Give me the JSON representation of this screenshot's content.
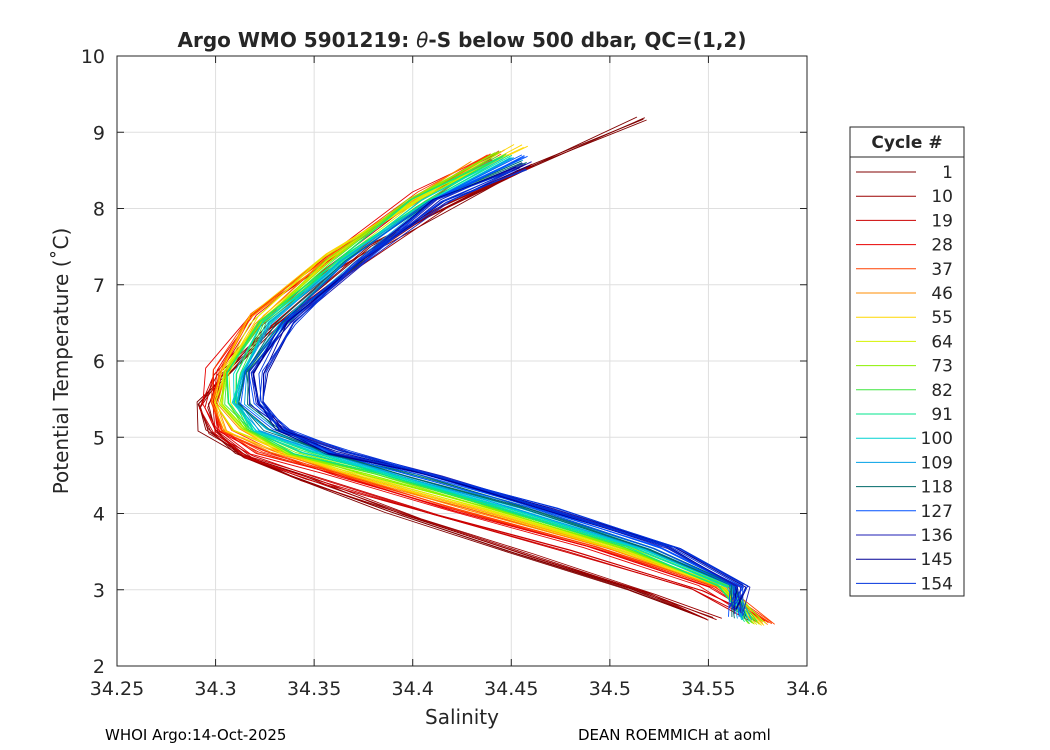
{
  "chart_data": {
    "type": "line",
    "title_prefix": "Argo WMO 5901219: ",
    "title_symbol": "θ",
    "title_suffix": "-S below 500 dbar,  QC=(1,2)",
    "xlabel": "Salinity",
    "ylabel": "Potential Temperature (˚C)",
    "xlim": [
      34.25,
      34.6
    ],
    "ylim": [
      2,
      10
    ],
    "xticks": [
      "34.25",
      "34.3",
      "34.35",
      "34.4",
      "34.45",
      "34.5",
      "34.55",
      "34.6"
    ],
    "yticks": [
      "2",
      "3",
      "4",
      "5",
      "6",
      "7",
      "8",
      "9",
      "10"
    ],
    "grid": true,
    "legend_title": "Cycle #",
    "legend_position": "right-outside",
    "series": [
      {
        "name": "1",
        "color": "#800000",
        "temp": [
          9.18,
          8.5,
          7.5,
          6.5,
          5.8,
          5.45,
          5.1,
          4.8,
          4.5,
          4.0,
          3.5,
          3.0,
          2.65
        ],
        "sal": [
          34.516,
          34.455,
          34.38,
          34.33,
          34.305,
          34.293,
          34.295,
          34.31,
          34.34,
          34.39,
          34.45,
          34.51,
          34.548
        ]
      },
      {
        "name": "10",
        "color": "#9b0000",
        "temp": [
          8.57,
          8.0,
          7.2,
          6.4,
          5.8,
          5.4,
          5.05,
          4.75,
          4.45,
          3.95,
          3.45,
          2.95,
          2.62
        ],
        "sal": [
          34.46,
          34.415,
          34.365,
          34.325,
          34.303,
          34.295,
          34.298,
          34.315,
          34.345,
          34.4,
          34.46,
          34.52,
          34.552
        ]
      },
      {
        "name": "19",
        "color": "#cc0000",
        "temp": [
          8.65,
          8.0,
          7.2,
          6.4,
          5.8,
          5.4,
          5.05,
          4.75,
          4.45,
          4.0,
          3.5,
          3.0,
          2.6
        ],
        "sal": [
          34.44,
          34.4,
          34.355,
          34.32,
          34.302,
          34.296,
          34.3,
          34.318,
          34.35,
          34.41,
          34.48,
          34.545,
          34.575
        ]
      },
      {
        "name": "28",
        "color": "#e80000",
        "temp": [
          8.75,
          8.2,
          7.4,
          6.6,
          5.9,
          5.45,
          5.1,
          4.8,
          4.5,
          4.05,
          3.55,
          3.05,
          2.57
        ],
        "sal": [
          34.445,
          34.405,
          34.36,
          34.32,
          34.3,
          34.297,
          34.302,
          34.322,
          34.36,
          34.42,
          34.49,
          34.55,
          34.578
        ]
      },
      {
        "name": "37",
        "color": "#ff4000",
        "temp": [
          8.7,
          8.2,
          7.4,
          6.6,
          5.9,
          5.45,
          5.1,
          4.8,
          4.5,
          4.05,
          3.55,
          3.05,
          2.55
        ],
        "sal": [
          34.44,
          34.405,
          34.358,
          34.32,
          34.302,
          34.298,
          34.305,
          34.325,
          34.365,
          34.425,
          34.495,
          34.555,
          34.582
        ]
      },
      {
        "name": "46",
        "color": "#ff8c00",
        "temp": [
          8.6,
          8.1,
          7.3,
          6.5,
          5.85,
          5.45,
          5.1,
          4.8,
          4.5,
          4.05,
          3.55,
          3.05,
          2.56
        ],
        "sal": [
          34.432,
          34.398,
          34.355,
          34.318,
          34.303,
          34.3,
          34.308,
          34.33,
          34.37,
          34.43,
          34.5,
          34.555,
          34.578
        ]
      },
      {
        "name": "55",
        "color": "#ffd700",
        "temp": [
          8.82,
          8.2,
          7.4,
          6.6,
          5.9,
          5.45,
          5.1,
          4.8,
          4.5,
          4.05,
          3.55,
          3.05,
          2.55
        ],
        "sal": [
          34.455,
          34.408,
          34.36,
          34.322,
          34.305,
          34.302,
          34.31,
          34.333,
          34.373,
          34.435,
          34.503,
          34.557,
          34.576
        ]
      },
      {
        "name": "64",
        "color": "#d4f200",
        "temp": [
          8.7,
          8.1,
          7.3,
          6.5,
          5.85,
          5.45,
          5.1,
          4.8,
          4.5,
          4.05,
          3.55,
          3.05,
          2.56
        ],
        "sal": [
          34.445,
          34.402,
          34.357,
          34.32,
          34.306,
          34.304,
          34.313,
          34.337,
          34.378,
          34.44,
          34.505,
          34.557,
          34.575
        ]
      },
      {
        "name": "73",
        "color": "#8cf000",
        "temp": [
          8.75,
          8.1,
          7.3,
          6.5,
          5.85,
          5.45,
          5.1,
          4.8,
          4.5,
          4.05,
          3.55,
          3.05,
          2.57
        ],
        "sal": [
          34.443,
          34.4,
          34.358,
          34.322,
          34.307,
          34.305,
          34.314,
          34.338,
          34.38,
          34.442,
          34.507,
          34.557,
          34.573
        ]
      },
      {
        "name": "82",
        "color": "#3fe63f",
        "temp": [
          8.7,
          8.1,
          7.3,
          6.5,
          5.85,
          5.45,
          5.1,
          4.8,
          4.5,
          4.05,
          3.55,
          3.05,
          2.57
        ],
        "sal": [
          34.446,
          34.402,
          34.36,
          34.324,
          34.309,
          34.307,
          34.317,
          34.342,
          34.385,
          34.447,
          34.51,
          34.558,
          34.572
        ]
      },
      {
        "name": "91",
        "color": "#00e68c",
        "temp": [
          8.68,
          8.1,
          7.3,
          6.5,
          5.85,
          5.45,
          5.1,
          4.8,
          4.5,
          4.05,
          3.55,
          3.05,
          2.58
        ],
        "sal": [
          34.448,
          34.404,
          34.362,
          34.326,
          34.311,
          34.309,
          34.32,
          34.345,
          34.388,
          34.45,
          34.513,
          34.56,
          34.57
        ]
      },
      {
        "name": "100",
        "color": "#00d2d2",
        "temp": [
          8.65,
          8.1,
          7.3,
          6.5,
          5.85,
          5.45,
          5.1,
          4.8,
          4.5,
          4.05,
          3.55,
          3.05,
          2.6
        ],
        "sal": [
          34.45,
          34.406,
          34.365,
          34.328,
          34.312,
          34.31,
          34.322,
          34.348,
          34.392,
          34.452,
          34.515,
          34.561,
          34.569
        ]
      },
      {
        "name": "109",
        "color": "#00a0e6",
        "temp": [
          8.65,
          8.1,
          7.3,
          6.5,
          5.85,
          5.45,
          5.1,
          4.8,
          4.5,
          4.05,
          3.55,
          3.05,
          2.62
        ],
        "sal": [
          34.452,
          34.408,
          34.367,
          34.33,
          34.314,
          34.312,
          34.325,
          34.352,
          34.397,
          34.455,
          34.518,
          34.562,
          34.568
        ]
      },
      {
        "name": "118",
        "color": "#006a6a",
        "temp": [
          8.62,
          8.1,
          7.3,
          6.5,
          5.85,
          5.45,
          5.1,
          4.8,
          4.5,
          4.05,
          3.55,
          3.05,
          2.64
        ],
        "sal": [
          34.455,
          34.41,
          34.37,
          34.333,
          34.316,
          34.315,
          34.328,
          34.356,
          34.4,
          34.46,
          34.52,
          34.563,
          34.566
        ]
      },
      {
        "name": "127",
        "color": "#0050ff",
        "temp": [
          8.7,
          8.1,
          7.3,
          6.5,
          5.85,
          5.45,
          5.1,
          4.8,
          4.5,
          4.05,
          3.55,
          3.05,
          2.66
        ],
        "sal": [
          34.457,
          34.412,
          34.372,
          34.336,
          34.318,
          34.318,
          34.332,
          34.36,
          34.405,
          34.465,
          34.525,
          34.565,
          34.565
        ]
      },
      {
        "name": "136",
        "color": "#1e1eb4",
        "temp": [
          8.6,
          8.1,
          7.3,
          6.5,
          5.85,
          5.45,
          5.1,
          4.8,
          4.5,
          4.05,
          3.55,
          3.05,
          2.7
        ],
        "sal": [
          34.458,
          34.414,
          34.373,
          34.338,
          34.32,
          34.32,
          34.335,
          34.363,
          34.41,
          34.47,
          34.53,
          34.566,
          34.565
        ]
      },
      {
        "name": "145",
        "color": "#000096",
        "temp": [
          8.55,
          8.1,
          7.3,
          6.5,
          5.85,
          5.45,
          5.1,
          4.8,
          4.5,
          4.05,
          3.55,
          3.05,
          2.73
        ],
        "sal": [
          34.456,
          34.413,
          34.372,
          34.337,
          34.322,
          34.322,
          34.333,
          34.36,
          34.408,
          34.47,
          34.532,
          34.566,
          34.563
        ]
      },
      {
        "name": "154",
        "color": "#0033dd",
        "temp": [
          8.5,
          8.1,
          7.3,
          6.5,
          5.85,
          5.45,
          5.1,
          4.8,
          4.5,
          4.05,
          3.55,
          3.05,
          2.75
        ],
        "sal": [
          34.455,
          34.414,
          34.373,
          34.338,
          34.322,
          34.323,
          34.336,
          34.365,
          34.412,
          34.473,
          34.533,
          34.567,
          34.562
        ]
      }
    ]
  },
  "footer": {
    "left": "WHOI Argo:14-Oct-2025",
    "right": "DEAN ROEMMICH at aoml"
  }
}
